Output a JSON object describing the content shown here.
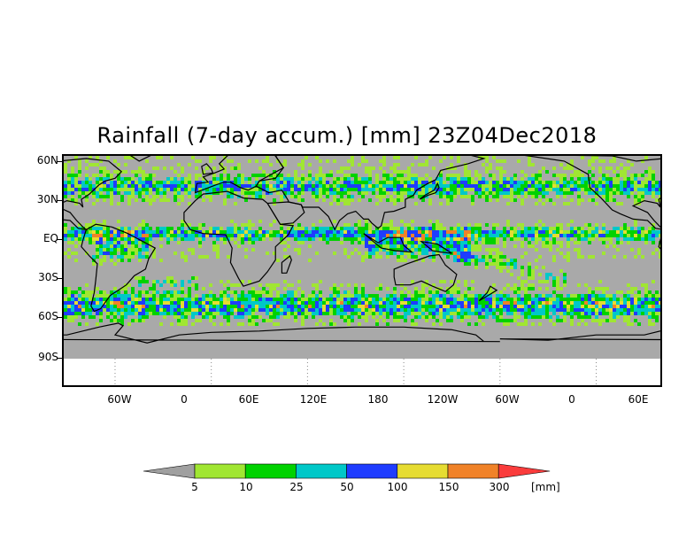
{
  "title": "Rainfall (7-day accum.) [mm] 23Z04Dec2018",
  "lat_labels": [
    "60N",
    "30N",
    "EQ",
    "30S",
    "60S",
    "90S"
  ],
  "lon_labels": [
    "60W",
    "0",
    "60E",
    "120E",
    "180",
    "120W",
    "60W",
    "0",
    "60E"
  ],
  "legend": {
    "thresholds": [
      "5",
      "10",
      "25",
      "50",
      "100",
      "150",
      "300"
    ],
    "unit": "[mm]",
    "colors": [
      "#a0a0a0",
      "#a0e632",
      "#00d200",
      "#00c8c8",
      "#1e3cff",
      "#e6dc32",
      "#f08228",
      "#fa3c3c"
    ]
  },
  "map": {
    "ocean_color": "#a9a9a9",
    "below_map_color": "#ffffff",
    "coast_color": "#000000"
  }
}
